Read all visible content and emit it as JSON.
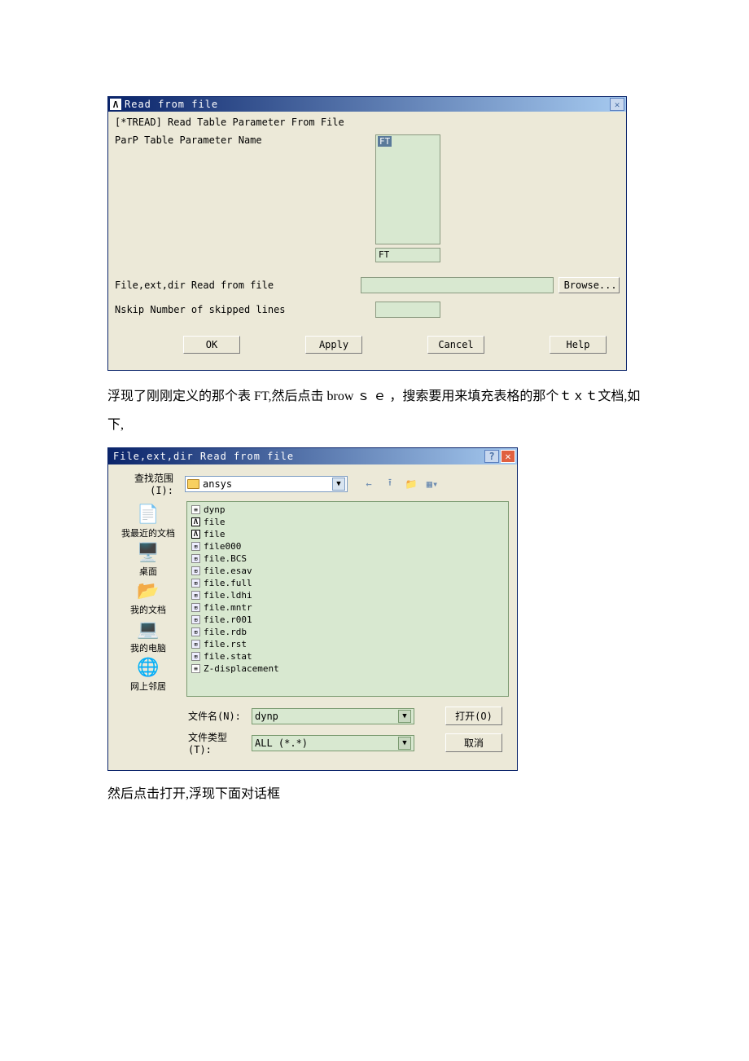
{
  "dialog1": {
    "title": "Read from file",
    "heading": "[*TREAD]  Read Table Parameter From File",
    "parLabel": "ParP  Table Parameter Name",
    "listSelected": "FT",
    "ftValue": "FT",
    "fileLabel": "File,ext,dir Read from file",
    "browse": "Browse...",
    "nskipLabel": "Nskip  Number of skipped lines",
    "buttons": {
      "ok": "OK",
      "apply": "Apply",
      "cancel": "Cancel",
      "help": "Help"
    }
  },
  "para1": "浮现了刚刚定义的那个表 FT,然后点击 brow ｓ ｅ ，搜索要用来填充表格的那个ｔｘｔ文档,如下,",
  "dialog2": {
    "title": "File,ext,dir Read from file",
    "lookinLabel": "查找范围(I):",
    "lookinValue": "ansys",
    "places": {
      "recent": "我最近的文档",
      "desktop": "桌面",
      "mydocs": "我的文档",
      "mycomputer": "我的电脑",
      "network": "网上邻居"
    },
    "files": [
      {
        "icon": "txt",
        "name": "dynp"
      },
      {
        "icon": "lambda",
        "name": "file"
      },
      {
        "icon": "lambda",
        "name": "file"
      },
      {
        "icon": "generic",
        "name": "file000"
      },
      {
        "icon": "generic",
        "name": "file.BCS"
      },
      {
        "icon": "generic",
        "name": "file.esav"
      },
      {
        "icon": "generic",
        "name": "file.full"
      },
      {
        "icon": "generic",
        "name": "file.ldhi"
      },
      {
        "icon": "generic",
        "name": "file.mntr"
      },
      {
        "icon": "generic",
        "name": "file.r001"
      },
      {
        "icon": "generic",
        "name": "file.rdb"
      },
      {
        "icon": "generic",
        "name": "file.rst"
      },
      {
        "icon": "generic",
        "name": "file.stat"
      },
      {
        "icon": "txt",
        "name": "Z-displacement"
      }
    ],
    "filenameLabel": "文件名(N):",
    "filenameValue": "dynp",
    "filetypeLabel": "文件类型(T):",
    "filetypeValue": "ALL (*.*)",
    "openBtn": "打开(O)",
    "cancelBtn": "取消"
  },
  "para2": "然后点击打开,浮现下面对话框"
}
